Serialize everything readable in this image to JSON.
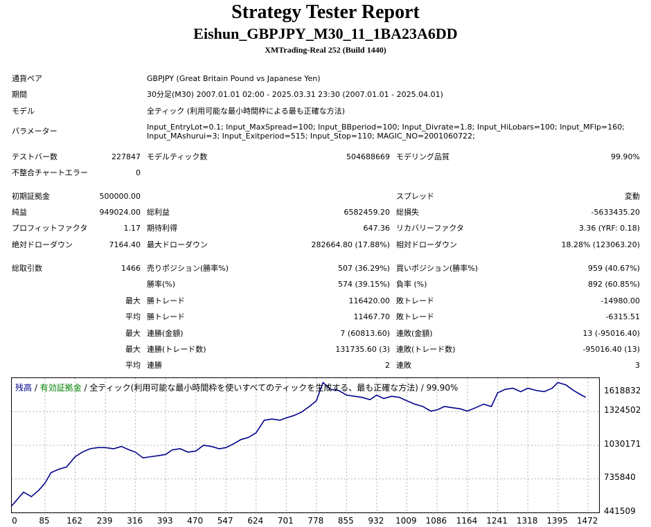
{
  "header": {
    "title": "Strategy Tester Report",
    "subtitle": "Eishun_GBPJPY_M30_11_1BA23A6DD",
    "server": "XMTrading-Real 252 (Build 1440)"
  },
  "info": {
    "pair_label": "通貨ペア",
    "pair_value": "GBPJPY (Great Britain Pound vs Japanese Yen)",
    "period_label": "期間",
    "period_value": "30分足(M30) 2007.01.01 02:00 - 2025.03.31 23:30 (2007.01.01 - 2025.04.01)",
    "model_label": "モデル",
    "model_value": "全ティック (利用可能な最小時間枠による最も正確な方法)",
    "params_label": "パラメーター",
    "params_line1": "Input_EntryLot=0.1; Input_MaxSpread=100; Input_BBperiod=100; Input_Divrate=1.8; Input_HiLobars=100; Input_MFlp=160;",
    "params_line2": "Input_MAshurui=3; Input_Exitperiod=515; Input_Stop=110; MAGIC_NO=2001060722;"
  },
  "bars": {
    "test_bars_label": "テストバー数",
    "test_bars": "227847",
    "model_ticks_label": "モデルティック数",
    "model_ticks": "504688669",
    "quality_label": "モデリング品質",
    "quality": "99.90%",
    "mismatch_label": "不整合チャートエラー",
    "mismatch": "0"
  },
  "results": {
    "deposit_label": "初期証拠金",
    "deposit": "500000.00",
    "spread_label": "スプレッド",
    "spread": "変動",
    "net_label": "純益",
    "net": "949024.00",
    "gross_profit_label": "総利益",
    "gross_profit": "6582459.20",
    "gross_loss_label": "総損失",
    "gross_loss": "-5633435.20",
    "pf_label": "プロフィットファクタ",
    "pf": "1.17",
    "expected_label": "期待利得",
    "expected": "647.36",
    "recovery_label": "リカバリーファクタ",
    "recovery": "3.36 (YRF: 0.18)",
    "abs_dd_label": "絶対ドローダウン",
    "abs_dd": "7164.40",
    "max_dd_label": "最大ドローダウン",
    "max_dd": "282664.80 (17.88%)",
    "rel_dd_label": "相対ドローダウン",
    "rel_dd": "18.28% (123063.20)"
  },
  "trades": {
    "total_label": "総取引数",
    "total": "1466",
    "short_label": "売りポジション(勝率%)",
    "short": "507 (36.29%)",
    "long_label": "買いポジション(勝率%)",
    "long": "959 (40.67%)",
    "winrate_label": "勝率(%)",
    "winrate": "574 (39.15%)",
    "lossrate_label": "負率 (%)",
    "lossrate": "892 (60.85%)",
    "max_label": "最大",
    "avg_label": "平均",
    "win_trade_label": "勝トレード",
    "loss_trade_label": "敗トレード",
    "max_win": "116420.00",
    "max_loss": "-14980.00",
    "avg_win": "11467.70",
    "avg_loss": "-6315.51",
    "consec_win_amt_label": "連勝(金額)",
    "consec_win_amt": "7 (60813.60)",
    "consec_loss_amt_label": "連敗(金額)",
    "consec_loss_amt": "13 (-95016.40)",
    "consec_win_trade_label": "連勝(トレード数)",
    "consec_win_trade": "131735.60 (3)",
    "consec_loss_trade_label": "連敗(トレード数)",
    "consec_loss_trade": "-95016.40 (13)",
    "consec_win_label": "連勝",
    "consec_win": "2",
    "consec_loss_label": "連敗",
    "consec_loss": "3"
  },
  "colors": {
    "balance": "#00008b",
    "equity": "#008000",
    "grid": "#b0b0b0"
  },
  "chart_data": {
    "type": "line",
    "legend_balance": "残高",
    "legend_sep1": " / ",
    "legend_equity": "有効証拠金",
    "legend_sep2": " / ",
    "legend_desc": "全ティック(利用可能な最小時間枠を使いすべてのティックを生成する、最も正確な方法)",
    "legend_sep3": " / ",
    "legend_quality": "99.90%",
    "x_ticks": [
      "0",
      "85",
      "162",
      "239",
      "316",
      "393",
      "470",
      "547",
      "624",
      "701",
      "778",
      "855",
      "932",
      "1009",
      "1086",
      "1164",
      "1241",
      "1318",
      "1395",
      "1472"
    ],
    "y_ticks": [
      "1618832",
      "1324502",
      "1030171",
      "735840",
      "441509"
    ],
    "xlim": [
      0,
      1500
    ],
    "ylim": [
      441509,
      1618832
    ],
    "grid": true,
    "series": [
      {
        "name": "残高",
        "x": [
          0,
          30,
          50,
          70,
          85,
          100,
          120,
          140,
          162,
          180,
          200,
          220,
          239,
          260,
          280,
          300,
          316,
          335,
          355,
          375,
          393,
          410,
          430,
          450,
          470,
          490,
          510,
          530,
          547,
          565,
          585,
          605,
          624,
          645,
          665,
          685,
          701,
          720,
          740,
          760,
          778,
          795,
          815,
          835,
          855,
          875,
          895,
          915,
          932,
          950,
          970,
          990,
          1009,
          1030,
          1050,
          1070,
          1086,
          1105,
          1125,
          1145,
          1164,
          1185,
          1205,
          1225,
          1241,
          1260,
          1280,
          1300,
          1318,
          1340,
          1360,
          1380,
          1395,
          1415,
          1435,
          1455,
          1466
        ],
        "y": [
          500000,
          620000,
          580000,
          640000,
          700000,
          790000,
          820000,
          840000,
          930000,
          970000,
          1000000,
          1010000,
          1010000,
          1000000,
          1020000,
          990000,
          970000,
          920000,
          930000,
          940000,
          950000,
          990000,
          1000000,
          970000,
          980000,
          1030000,
          1020000,
          1000000,
          1010000,
          1040000,
          1080000,
          1100000,
          1140000,
          1250000,
          1260000,
          1250000,
          1270000,
          1290000,
          1320000,
          1370000,
          1420000,
          1580000,
          1520000,
          1510000,
          1470000,
          1460000,
          1450000,
          1430000,
          1470000,
          1440000,
          1460000,
          1450000,
          1420000,
          1390000,
          1370000,
          1330000,
          1340000,
          1370000,
          1360000,
          1350000,
          1330000,
          1360000,
          1390000,
          1370000,
          1490000,
          1520000,
          1530000,
          1500000,
          1530000,
          1510000,
          1500000,
          1530000,
          1580000,
          1560000,
          1510000,
          1470000,
          1450000
        ]
      }
    ]
  }
}
